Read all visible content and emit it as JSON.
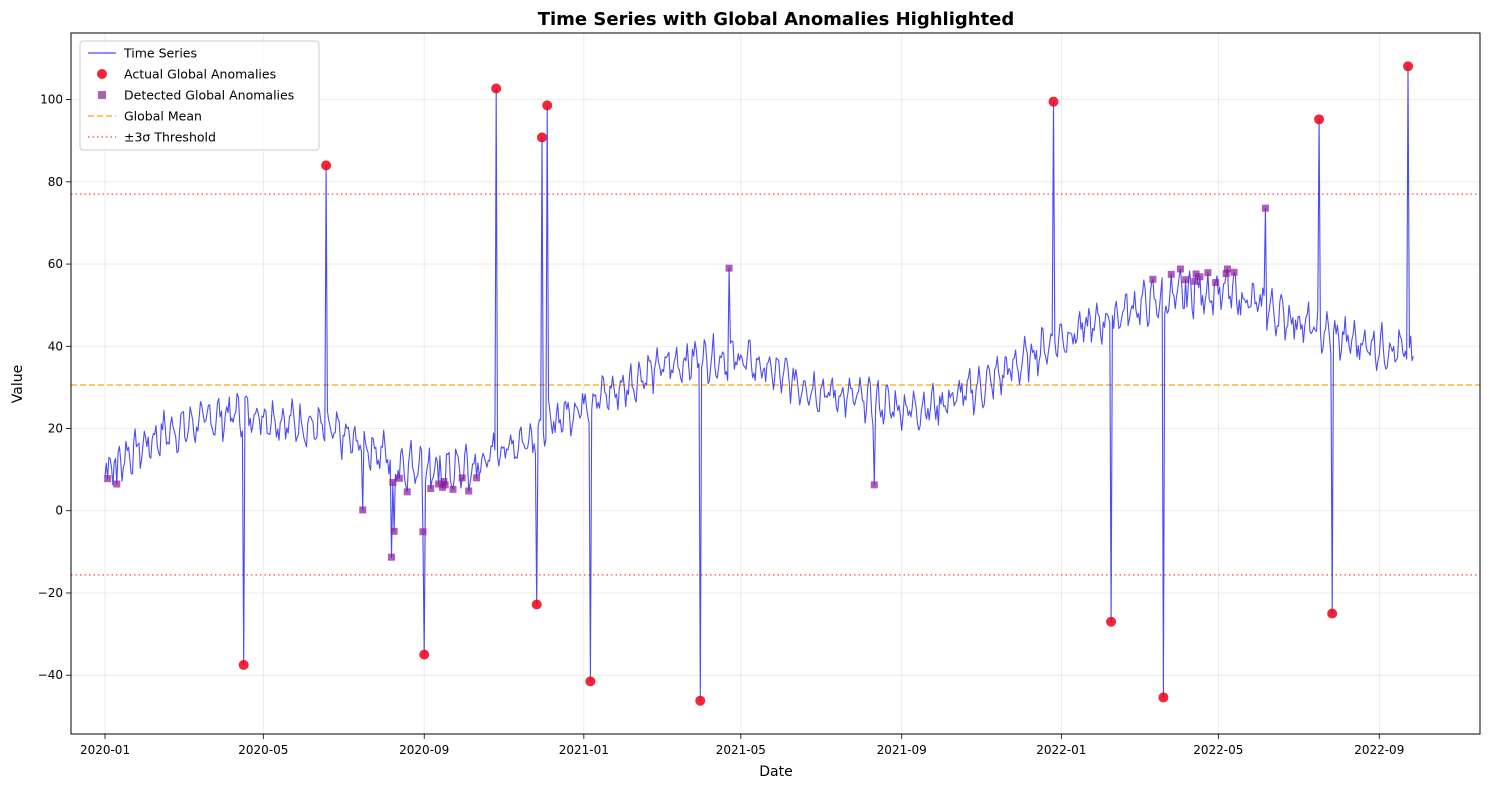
{
  "chart_data": {
    "type": "line",
    "title": "Time Series with Global Anomalies Highlighted",
    "xlabel": "Date",
    "ylabel": "Value",
    "xlim": [
      "2019-12-06",
      "2022-11-17"
    ],
    "ylim": [
      -54.3,
      116.2
    ],
    "x_ticks": [
      "2020-01",
      "2020-05",
      "2020-09",
      "2021-01",
      "2021-05",
      "2021-09",
      "2022-01",
      "2022-05",
      "2022-09"
    ],
    "y_ticks": [
      -40,
      -20,
      0,
      20,
      40,
      60,
      80,
      100
    ],
    "grid": true,
    "legend_position": "top-left",
    "colors": {
      "series": "#0000ee",
      "actual": "#ee0018",
      "detected": "#8b1a9b",
      "mean": "#ffa500",
      "threshold": "#ff0000"
    },
    "global_mean": 30.6,
    "threshold_upper": 77.0,
    "threshold_lower": -15.6,
    "series_name": "Time Series",
    "series_anchors": [
      [
        "2020-01-01",
        11
      ],
      [
        "2020-01-15",
        13
      ],
      [
        "2020-02-01",
        16
      ],
      [
        "2020-02-15",
        19
      ],
      [
        "2020-03-01",
        20
      ],
      [
        "2020-03-15",
        22
      ],
      [
        "2020-04-01",
        23
      ],
      [
        "2020-04-15",
        24
      ],
      [
        "2020-05-01",
        23
      ],
      [
        "2020-05-15",
        22
      ],
      [
        "2020-06-01",
        21
      ],
      [
        "2020-06-15",
        20
      ],
      [
        "2020-07-01",
        18
      ],
      [
        "2020-07-15",
        16
      ],
      [
        "2020-08-01",
        14
      ],
      [
        "2020-08-15",
        12
      ],
      [
        "2020-09-01",
        11
      ],
      [
        "2020-09-15",
        10
      ],
      [
        "2020-10-01",
        10
      ],
      [
        "2020-10-15",
        12
      ],
      [
        "2020-11-01",
        15
      ],
      [
        "2020-11-15",
        17
      ],
      [
        "2020-12-01",
        20
      ],
      [
        "2020-12-15",
        23
      ],
      [
        "2021-01-01",
        26
      ],
      [
        "2021-01-15",
        28
      ],
      [
        "2021-02-01",
        30
      ],
      [
        "2021-02-15",
        33
      ],
      [
        "2021-03-01",
        35
      ],
      [
        "2021-03-15",
        36
      ],
      [
        "2021-04-01",
        37
      ],
      [
        "2021-04-15",
        37
      ],
      [
        "2021-05-01",
        37
      ],
      [
        "2021-05-15",
        35
      ],
      [
        "2021-06-01",
        33
      ],
      [
        "2021-06-15",
        31
      ],
      [
        "2021-07-01",
        29
      ],
      [
        "2021-07-15",
        28
      ],
      [
        "2021-08-01",
        27
      ],
      [
        "2021-08-15",
        26
      ],
      [
        "2021-09-01",
        25
      ],
      [
        "2021-09-15",
        25
      ],
      [
        "2021-10-01",
        26
      ],
      [
        "2021-10-15",
        28
      ],
      [
        "2021-11-01",
        30
      ],
      [
        "2021-11-15",
        33
      ],
      [
        "2021-12-01",
        36
      ],
      [
        "2021-12-15",
        39
      ],
      [
        "2022-01-01",
        42
      ],
      [
        "2022-01-15",
        44
      ],
      [
        "2022-02-01",
        46
      ],
      [
        "2022-02-15",
        48
      ],
      [
        "2022-03-01",
        50
      ],
      [
        "2022-03-15",
        51
      ],
      [
        "2022-04-01",
        52
      ],
      [
        "2022-04-15",
        53
      ],
      [
        "2022-05-01",
        53
      ],
      [
        "2022-05-15",
        52
      ],
      [
        "2022-06-01",
        50
      ],
      [
        "2022-06-15",
        48
      ],
      [
        "2022-07-01",
        46
      ],
      [
        "2022-07-15",
        44
      ],
      [
        "2022-08-01",
        42
      ],
      [
        "2022-08-15",
        41
      ],
      [
        "2022-09-01",
        40
      ],
      [
        "2022-09-15",
        39
      ],
      [
        "2022-09-27",
        38
      ]
    ],
    "actual_anomalies": [
      {
        "x": "2020-04-16",
        "y": -37.5
      },
      {
        "x": "2020-06-18",
        "y": 84.0
      },
      {
        "x": "2020-09-01",
        "y": -35.0
      },
      {
        "x": "2020-10-26",
        "y": 102.7
      },
      {
        "x": "2020-11-26",
        "y": -22.8
      },
      {
        "x": "2020-11-30",
        "y": 90.8
      },
      {
        "x": "2020-12-04",
        "y": 98.6
      },
      {
        "x": "2021-01-06",
        "y": -41.5
      },
      {
        "x": "2021-03-31",
        "y": -46.2
      },
      {
        "x": "2021-12-26",
        "y": 99.5
      },
      {
        "x": "2022-02-08",
        "y": -27.0
      },
      {
        "x": "2022-03-20",
        "y": -45.4
      },
      {
        "x": "2022-07-17",
        "y": 95.2
      },
      {
        "x": "2022-07-27",
        "y": -25.0
      },
      {
        "x": "2022-09-23",
        "y": 108.1
      }
    ],
    "detected_anomalies": [
      {
        "x": "2020-01-03",
        "y": 7.8
      },
      {
        "x": "2020-01-10",
        "y": 6.5
      },
      {
        "x": "2020-07-16",
        "y": 0.2
      },
      {
        "x": "2020-08-07",
        "y": -11.3
      },
      {
        "x": "2020-08-08",
        "y": 6.9
      },
      {
        "x": "2020-08-09",
        "y": -5.0
      },
      {
        "x": "2020-08-13",
        "y": 7.9
      },
      {
        "x": "2020-08-19",
        "y": 4.6
      },
      {
        "x": "2020-08-31",
        "y": -5.1
      },
      {
        "x": "2020-09-06",
        "y": 5.4
      },
      {
        "x": "2020-09-12",
        "y": 6.5
      },
      {
        "x": "2020-09-15",
        "y": 5.7
      },
      {
        "x": "2020-09-16",
        "y": 7.1
      },
      {
        "x": "2020-09-17",
        "y": 6.3
      },
      {
        "x": "2020-09-23",
        "y": 5.2
      },
      {
        "x": "2020-09-30",
        "y": 8.0
      },
      {
        "x": "2020-10-05",
        "y": 4.8
      },
      {
        "x": "2020-10-11",
        "y": 8.0
      },
      {
        "x": "2021-04-22",
        "y": 59.0
      },
      {
        "x": "2021-08-11",
        "y": 6.3
      },
      {
        "x": "2022-03-12",
        "y": 56.3
      },
      {
        "x": "2022-03-26",
        "y": 57.5
      },
      {
        "x": "2022-04-02",
        "y": 58.8
      },
      {
        "x": "2022-04-06",
        "y": 56.2
      },
      {
        "x": "2022-04-13",
        "y": 55.8
      },
      {
        "x": "2022-04-14",
        "y": 57.6
      },
      {
        "x": "2022-04-17",
        "y": 56.9
      },
      {
        "x": "2022-04-23",
        "y": 57.9
      },
      {
        "x": "2022-04-29",
        "y": 55.5
      },
      {
        "x": "2022-05-07",
        "y": 57.7
      },
      {
        "x": "2022-05-08",
        "y": 58.8
      },
      {
        "x": "2022-05-13",
        "y": 58.0
      },
      {
        "x": "2022-06-06",
        "y": 73.6
      }
    ],
    "legend": [
      {
        "label": "Time Series",
        "kind": "line"
      },
      {
        "label": "Actual Global Anomalies",
        "kind": "circle"
      },
      {
        "label": "Detected Global Anomalies",
        "kind": "square"
      },
      {
        "label": "Global Mean",
        "kind": "dashed"
      },
      {
        "label": "±3σ Threshold",
        "kind": "dotted"
      }
    ]
  }
}
